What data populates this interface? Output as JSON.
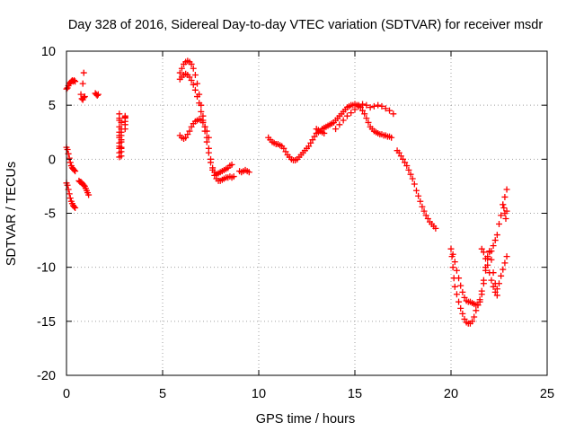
{
  "chart_data": {
    "type": "scatter",
    "title": "Day 328 of 2016, Sidereal Day-to-day VTEC variation (SDTVAR) for receiver msdr",
    "xlabel": "GPS time / hours",
    "ylabel": "SDTVAR / TECUs",
    "xlim": [
      0,
      25
    ],
    "ylim": [
      -20,
      10
    ],
    "xticks": [
      "0",
      "5",
      "10",
      "15",
      "20",
      "25"
    ],
    "yticks": [
      "10",
      "5",
      "0",
      "-5",
      "-10",
      "-15",
      "-20"
    ],
    "grid": true,
    "marker": "+",
    "color": "#ff0000",
    "series": [
      {
        "x": [
          0.0,
          0.05,
          0.1,
          0.15,
          0.2,
          0.25,
          0.3,
          0.35,
          0.4,
          0.45
        ],
        "y": [
          6.5,
          6.6,
          6.8,
          7.0,
          7.1,
          7.2,
          7.3,
          7.2,
          7.3,
          7.2
        ]
      },
      {
        "x": [
          0.75,
          0.8,
          0.85,
          0.9,
          0.95
        ],
        "y": [
          6.0,
          5.6,
          5.5,
          5.7,
          5.8
        ]
      },
      {
        "x": [
          0.85,
          0.9
        ],
        "y": [
          7.0,
          8.0
        ]
      },
      {
        "x": [
          1.5,
          1.55,
          1.6,
          1.65
        ],
        "y": [
          6.1,
          6.0,
          5.9,
          6.0
        ]
      },
      {
        "x": [
          0.0,
          0.05,
          0.1,
          0.15,
          0.2,
          0.25,
          0.3,
          0.35,
          0.4,
          0.45
        ],
        "y": [
          1.1,
          0.9,
          0.5,
          0.1,
          -0.3,
          -0.6,
          -0.8,
          -0.9,
          -1.0,
          -1.1
        ]
      },
      {
        "x": [
          0.0,
          0.05,
          0.1,
          0.15,
          0.2,
          0.25,
          0.3,
          0.35,
          0.4,
          0.45
        ],
        "y": [
          -2.2,
          -2.4,
          -2.8,
          -3.2,
          -3.6,
          -3.9,
          -4.1,
          -4.3,
          -4.4,
          -4.5
        ]
      },
      {
        "x": [
          0.65,
          0.7,
          0.75,
          0.8,
          0.85,
          0.9,
          0.95,
          1.0,
          1.05,
          1.1,
          1.15
        ],
        "y": [
          -2.0,
          -2.1,
          -2.1,
          -2.2,
          -2.3,
          -2.4,
          -2.5,
          -2.7,
          -2.9,
          -3.1,
          -3.3
        ]
      },
      {
        "x": [
          2.75,
          2.75,
          2.75,
          2.75,
          2.75,
          2.75,
          2.75,
          2.75,
          2.75,
          2.75,
          2.75,
          2.75
        ],
        "y": [
          4.2,
          3.6,
          3.0,
          2.5,
          2.0,
          1.5,
          1.0,
          0.6,
          0.2,
          3.8,
          2.2,
          1.2
        ]
      },
      {
        "x": [
          2.85,
          2.85,
          2.85,
          2.85,
          2.85,
          2.85,
          2.85,
          2.85,
          2.85,
          2.85
        ],
        "y": [
          3.4,
          2.8,
          2.2,
          1.6,
          1.1,
          0.7,
          0.3,
          2.5,
          1.8,
          1.0
        ]
      },
      {
        "x": [
          3.05,
          3.05,
          3.05,
          3.05,
          3.05,
          3.05
        ],
        "y": [
          4.0,
          3.8,
          3.5,
          3.2,
          2.8,
          3.9
        ]
      },
      {
        "x": [
          5.9,
          6.0,
          6.1,
          6.2,
          6.3,
          6.4,
          6.5,
          6.6,
          6.7,
          6.8,
          6.9,
          7.0,
          7.1,
          7.2,
          7.3,
          7.4,
          7.5,
          7.6,
          7.7,
          7.8,
          7.9,
          8.0,
          8.1,
          8.2,
          8.3,
          8.4,
          8.5,
          8.6
        ],
        "y": [
          8.0,
          8.4,
          8.8,
          9.0,
          9.1,
          9.0,
          8.8,
          8.4,
          7.8,
          7.0,
          6.0,
          5.0,
          4.0,
          3.0,
          2.0,
          1.0,
          0.0,
          -0.8,
          -1.2,
          -1.4,
          -1.3,
          -1.2,
          -1.1,
          -1.0,
          -0.9,
          -0.8,
          -0.6,
          -0.5
        ]
      },
      {
        "x": [
          5.9,
          6.0,
          6.1,
          6.2,
          6.3,
          6.4,
          6.5,
          6.6,
          6.7,
          6.8,
          6.9,
          7.0,
          7.1,
          7.2,
          7.3,
          7.4,
          7.5,
          7.6,
          7.7,
          7.8,
          7.9,
          8.0,
          8.1,
          8.2,
          8.3,
          8.4,
          8.5,
          8.6,
          8.7
        ],
        "y": [
          7.4,
          7.6,
          7.8,
          7.9,
          7.8,
          7.6,
          7.3,
          6.9,
          6.4,
          5.8,
          5.2,
          4.4,
          3.6,
          2.6,
          1.6,
          0.6,
          -0.3,
          -1.0,
          -1.5,
          -1.8,
          -2.0,
          -2.0,
          -1.9,
          -1.8,
          -1.7,
          -1.7,
          -1.6,
          -1.7,
          -1.6
        ]
      },
      {
        "x": [
          5.9,
          6.0,
          6.1,
          6.2,
          6.3,
          6.4,
          6.5,
          6.6,
          6.7,
          6.8,
          6.9,
          7.0,
          7.1,
          7.2,
          7.3,
          7.4
        ],
        "y": [
          2.2,
          2.0,
          1.9,
          2.0,
          2.3,
          2.6,
          3.0,
          3.3,
          3.5,
          3.6,
          3.7,
          3.6,
          3.4,
          3.0,
          2.6,
          2.0
        ]
      },
      {
        "x": [
          9.0,
          9.1,
          9.2,
          9.3,
          9.4,
          9.5
        ],
        "y": [
          -1.1,
          -1.2,
          -1.1,
          -1.0,
          -1.1,
          -1.2
        ]
      },
      {
        "x": [
          10.5,
          10.6,
          10.7,
          10.8,
          10.9,
          11.0,
          11.1,
          11.2,
          11.3,
          11.4,
          11.5,
          11.6,
          11.7,
          11.8,
          11.9,
          12.0,
          12.1,
          12.2,
          12.3,
          12.4,
          12.5,
          12.6,
          12.7,
          12.8,
          12.9,
          13.0,
          13.1,
          13.2,
          13.3,
          13.4,
          13.5,
          13.6,
          13.7,
          13.8,
          13.9,
          14.0,
          14.1,
          14.2,
          14.3,
          14.4,
          14.5,
          14.6,
          14.7,
          14.8,
          14.9,
          15.0,
          15.1,
          15.2,
          15.3,
          15.4,
          15.5,
          15.6,
          15.7,
          15.8,
          15.9,
          16.0,
          16.1,
          16.2,
          16.3,
          16.4,
          16.5,
          16.6,
          16.7,
          16.8,
          16.9
        ],
        "y": [
          2.0,
          1.8,
          1.6,
          1.5,
          1.4,
          1.4,
          1.3,
          1.2,
          1.0,
          0.7,
          0.4,
          0.2,
          0.0,
          -0.1,
          -0.1,
          0.0,
          0.2,
          0.4,
          0.6,
          0.8,
          1.0,
          1.2,
          1.5,
          1.8,
          2.1,
          2.4,
          2.5,
          2.6,
          2.8,
          2.9,
          3.0,
          3.1,
          3.2,
          3.3,
          3.4,
          3.6,
          3.8,
          4.0,
          4.2,
          4.4,
          4.6,
          4.8,
          4.9,
          5.0,
          5.0,
          5.1,
          5.0,
          5.0,
          4.8,
          4.5,
          4.2,
          3.8,
          3.4,
          3.0,
          2.8,
          2.6,
          2.5,
          2.4,
          2.3,
          2.3,
          2.2,
          2.2,
          2.1,
          2.1,
          2.0
        ]
      },
      {
        "x": [
          14.0,
          14.2,
          14.4,
          14.6,
          14.8,
          15.0,
          15.2,
          15.4,
          15.6,
          15.8,
          16.0,
          16.2,
          16.4,
          16.6,
          16.8,
          17.0
        ],
        "y": [
          2.8,
          3.2,
          3.6,
          4.0,
          4.3,
          4.6,
          4.9,
          5.1,
          5.0,
          4.8,
          4.9,
          5.0,
          4.9,
          4.7,
          4.5,
          4.2
        ]
      },
      {
        "x": [
          13.0,
          13.1,
          13.2,
          13.3,
          13.4
        ],
        "y": [
          2.8,
          2.7,
          2.6,
          2.5,
          2.4
        ]
      },
      {
        "x": [
          17.2,
          17.3,
          17.4,
          17.5,
          17.6,
          17.7,
          17.8,
          17.9,
          18.0,
          18.1,
          18.2,
          18.3,
          18.4,
          18.5,
          18.6,
          18.7,
          18.8,
          18.9,
          19.0,
          19.1,
          19.2
        ],
        "y": [
          0.8,
          0.6,
          0.3,
          0.0,
          -0.3,
          -0.6,
          -1.0,
          -1.4,
          -1.8,
          -2.3,
          -2.9,
          -3.4,
          -3.9,
          -4.4,
          -4.8,
          -5.2,
          -5.5,
          -5.8,
          -6.0,
          -6.2,
          -6.4
        ]
      },
      {
        "x": [
          20.0,
          20.05,
          20.1,
          20.15,
          20.2,
          20.3,
          20.4,
          20.5,
          20.6,
          20.7,
          20.8,
          20.9,
          21.0,
          21.1,
          21.2,
          21.3,
          21.4,
          21.5,
          21.6,
          21.7,
          21.8,
          21.9,
          22.0,
          22.1,
          22.2,
          22.3,
          22.4,
          22.5,
          22.6,
          22.7,
          22.8,
          22.9
        ],
        "y": [
          -8.3,
          -9.0,
          -10.0,
          -11.0,
          -11.8,
          -12.5,
          -13.2,
          -13.8,
          -14.3,
          -14.8,
          -15.1,
          -15.2,
          -15.2,
          -15.0,
          -14.6,
          -14.0,
          -13.5,
          -13.0,
          -12.2,
          -11.2,
          -10.0,
          -9.0,
          -8.5,
          -8.5,
          -8.0,
          -7.5,
          -7.0,
          -6.0,
          -5.2,
          -4.2,
          -3.5,
          -2.8
        ]
      },
      {
        "x": [
          20.1,
          20.2,
          20.3,
          20.4,
          20.5,
          20.6,
          20.7,
          20.8,
          20.9,
          21.0,
          21.1,
          21.2,
          21.3,
          21.4,
          21.5,
          21.6,
          21.7,
          21.8,
          21.9,
          22.0,
          22.1,
          22.2,
          22.3,
          22.4,
          22.5,
          22.6,
          22.7,
          22.8,
          22.9
        ],
        "y": [
          -8.8,
          -9.5,
          -10.3,
          -11.0,
          -11.7,
          -12.3,
          -12.8,
          -13.1,
          -13.2,
          -13.2,
          -13.3,
          -13.4,
          -13.5,
          -13.5,
          -13.2,
          -12.5,
          -11.5,
          -10.3,
          -9.2,
          -8.6,
          -9.3,
          -10.5,
          -11.5,
          -12.0,
          -11.5,
          -10.8,
          -10.2,
          -9.6,
          -9.0
        ]
      },
      {
        "x": [
          21.6,
          21.7,
          21.8,
          21.9,
          22.0,
          22.1,
          22.2,
          22.3,
          22.4
        ],
        "y": [
          -8.3,
          -8.6,
          -9.2,
          -9.8,
          -10.5,
          -11.2,
          -11.8,
          -12.3,
          -12.6
        ]
      },
      {
        "x": [
          22.7,
          22.75,
          22.8,
          22.85,
          22.9
        ],
        "y": [
          -4.2,
          -4.5,
          -5.0,
          -5.5,
          -4.8
        ]
      }
    ]
  }
}
